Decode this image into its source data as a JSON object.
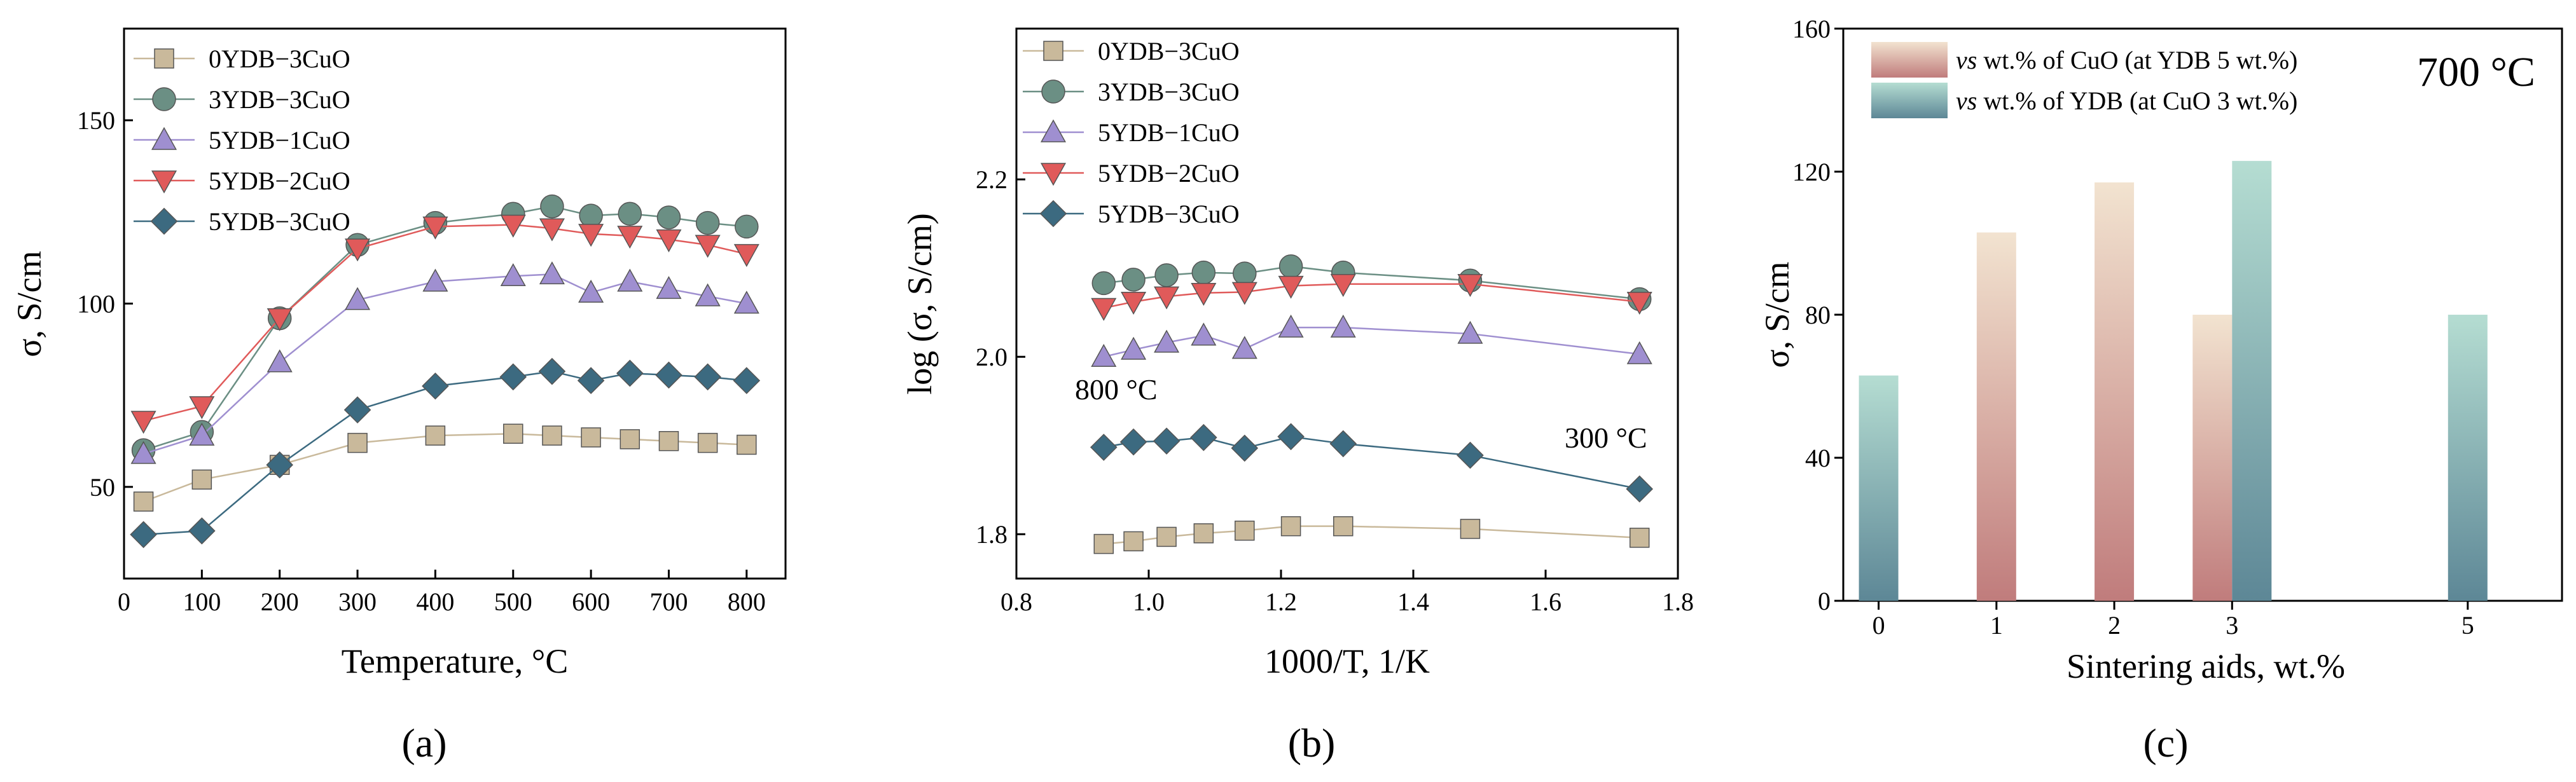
{
  "colors": {
    "0YDB-3CuO": "#c9b99b",
    "3YDB-3CuO": "#6b8f84",
    "5YDB-1CuO": "#9f8fd0",
    "5YDB-2CuO": "#e05a5a",
    "5YDB-3CuO": "#3c6a80",
    "cuo_bar_top": "#f2e3d0",
    "cuo_bar_bottom": "#c07c7c",
    "ydb_bar_top": "#b5ddd2",
    "ydb_bar_bottom": "#5d8796"
  },
  "panel_labels": [
    "(a)",
    "(b)",
    "(c)"
  ],
  "chart_data": [
    {
      "type": "line",
      "panel": "(a)",
      "xlabel": "Temperature, °C",
      "ylabel": "σ, S/cm",
      "xlim": [
        0,
        850
      ],
      "ylim": [
        25,
        175
      ],
      "xticks": [
        0,
        100,
        200,
        300,
        400,
        500,
        600,
        700,
        800
      ],
      "yticks": [
        50,
        100,
        150
      ],
      "legend": "top-left",
      "series": [
        {
          "name": "0YDB−3CuO",
          "key": "0YDB-3CuO",
          "marker": "square",
          "x": [
            25,
            100,
            200,
            300,
            400,
            500,
            550,
            600,
            650,
            700,
            750,
            800
          ],
          "y": [
            46,
            52,
            56,
            62,
            64,
            64.5,
            64,
            63.5,
            63,
            62.5,
            62,
            61.5
          ]
        },
        {
          "name": "3YDB−3CuO",
          "key": "3YDB-3CuO",
          "marker": "circle",
          "x": [
            25,
            100,
            200,
            300,
            400,
            500,
            550,
            600,
            650,
            700,
            750,
            800
          ],
          "y": [
            60,
            65,
            96,
            116,
            122,
            124.5,
            126.5,
            124,
            124.5,
            123.5,
            122,
            121
          ]
        },
        {
          "name": "5YDB−1CuO",
          "key": "5YDB-1CuO",
          "marker": "triangle-up",
          "x": [
            25,
            100,
            200,
            300,
            400,
            500,
            550,
            600,
            650,
            700,
            750,
            800
          ],
          "y": [
            59,
            64,
            84,
            101,
            106,
            107.5,
            108,
            103,
            106,
            104,
            102,
            100
          ]
        },
        {
          "name": "5YDB−2CuO",
          "key": "5YDB-2CuO",
          "marker": "triangle-down",
          "x": [
            25,
            100,
            200,
            300,
            400,
            500,
            550,
            600,
            650,
            700,
            750,
            800
          ],
          "y": [
            68,
            72,
            96,
            115,
            121,
            121.5,
            120.5,
            119,
            118.5,
            117.5,
            116,
            113.5
          ]
        },
        {
          "name": "5YDB−3CuO",
          "key": "5YDB-3CuO",
          "marker": "diamond",
          "x": [
            25,
            100,
            200,
            300,
            400,
            500,
            550,
            600,
            650,
            700,
            750,
            800
          ],
          "y": [
            37,
            38,
            56,
            71,
            77.5,
            80,
            81.5,
            79,
            81,
            80.5,
            80,
            79
          ]
        }
      ]
    },
    {
      "type": "line",
      "panel": "(b)",
      "xlabel": "1000/T, 1/K",
      "ylabel": "log (σ, S/cm)",
      "xlim": [
        0.8,
        1.8
      ],
      "ylim": [
        1.75,
        2.37
      ],
      "xticks": [
        0.8,
        1.0,
        1.2,
        1.4,
        1.6,
        1.8
      ],
      "xtick_labels": [
        "0.8",
        "1.0",
        "1.2",
        "1.4",
        "1.6",
        "1.8"
      ],
      "yticks": [
        1.8,
        2.0,
        2.2
      ],
      "ytick_labels": [
        "1.8",
        "2.0",
        "2.2"
      ],
      "legend": "top-left",
      "annotations": [
        "800 °C",
        "300 °C"
      ],
      "series": [
        {
          "name": "0YDB−3CuO",
          "key": "0YDB-3CuO",
          "marker": "square",
          "x": [
            0.932,
            0.977,
            1.027,
            1.083,
            1.145,
            1.215,
            1.294,
            1.486,
            1.742
          ],
          "y": [
            1.789,
            1.792,
            1.797,
            1.801,
            1.804,
            1.809,
            1.809,
            1.806,
            1.796
          ]
        },
        {
          "name": "3YDB−3CuO",
          "key": "3YDB-3CuO",
          "marker": "circle",
          "x": [
            0.932,
            0.977,
            1.027,
            1.083,
            1.145,
            1.215,
            1.294,
            1.486,
            1.742
          ],
          "y": [
            2.083,
            2.087,
            2.092,
            2.095,
            2.094,
            2.102,
            2.095,
            2.086,
            2.065
          ]
        },
        {
          "name": "5YDB−1CuO",
          "key": "5YDB-1CuO",
          "marker": "triangle-up",
          "x": [
            0.932,
            0.977,
            1.027,
            1.083,
            1.145,
            1.215,
            1.294,
            1.486,
            1.742
          ],
          "y": [
            2.0,
            2.008,
            2.016,
            2.024,
            2.009,
            2.033,
            2.033,
            2.026,
            2.003
          ]
        },
        {
          "name": "5YDB−2CuO",
          "key": "5YDB-2CuO",
          "marker": "triangle-down",
          "x": [
            0.932,
            0.977,
            1.027,
            1.083,
            1.145,
            1.215,
            1.294,
            1.486,
            1.742
          ],
          "y": [
            2.055,
            2.062,
            2.068,
            2.072,
            2.073,
            2.08,
            2.082,
            2.082,
            2.062
          ]
        },
        {
          "name": "5YDB−3CuO",
          "key": "5YDB-3CuO",
          "marker": "diamond",
          "x": [
            0.932,
            0.977,
            1.027,
            1.083,
            1.145,
            1.215,
            1.294,
            1.486,
            1.742
          ],
          "y": [
            1.898,
            1.904,
            1.905,
            1.909,
            1.897,
            1.91,
            1.902,
            1.889,
            1.851
          ]
        }
      ]
    },
    {
      "type": "bar",
      "panel": "(c)",
      "xlabel": "Sintering aids, wt.%",
      "ylabel": "σ, S/cm",
      "xlim": [
        -0.3,
        5.8
      ],
      "ylim": [
        0,
        160
      ],
      "xticks": [
        0,
        1,
        2,
        3,
        5
      ],
      "yticks": [
        0,
        40,
        80,
        120,
        160
      ],
      "legend": "top-left",
      "annotation": "700 °C",
      "series": [
        {
          "name_prefix": "vs",
          "name": " wt.% of CuO (at YDB 5 wt.%)",
          "key": "cuo",
          "x": [
            1,
            2,
            3
          ],
          "values": [
            103,
            117,
            80
          ]
        },
        {
          "name_prefix": "vs",
          "name": " wt.% of YDB (at CuO 3 wt.%)",
          "key": "ydb",
          "x": [
            0,
            3,
            5
          ],
          "values": [
            63,
            123,
            80
          ]
        }
      ]
    }
  ]
}
